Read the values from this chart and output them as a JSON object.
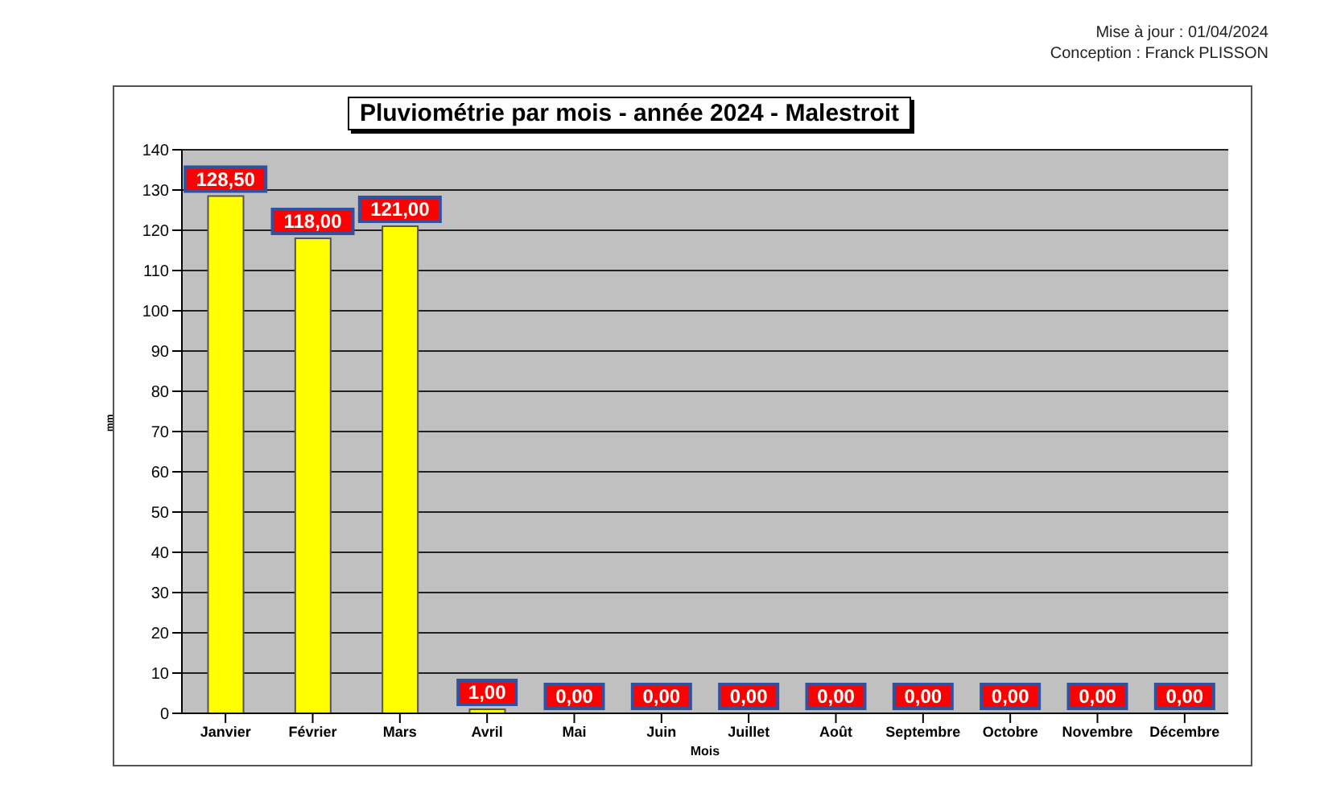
{
  "chart_data": {
    "type": "bar",
    "title": "Pluviométrie par mois - année 2024 - Malestroit",
    "xlabel": "Mois",
    "ylabel": "mm",
    "annotations": [
      "Mise à jour : 01/04/2024",
      "Conception : Franck PLISSON"
    ],
    "categories": [
      "Janvier",
      "Février",
      "Mars",
      "Avril",
      "Mai",
      "Juin",
      "Juillet",
      "Août",
      "Septembre",
      "Octobre",
      "Novembre",
      "Décembre"
    ],
    "values": [
      128.5,
      118,
      121,
      1,
      0,
      0,
      0,
      0,
      0,
      0,
      0,
      0
    ],
    "value_labels": [
      "128,50",
      "118,00",
      "121,00",
      "1,00",
      "0,00",
      "0,00",
      "0,00",
      "0,00",
      "0,00",
      "0,00",
      "0,00",
      "0,00"
    ],
    "color": "#ffff00",
    "ylim": [
      0,
      140
    ],
    "yticks": [
      0,
      10,
      20,
      30,
      40,
      50,
      60,
      70,
      80,
      90,
      100,
      110,
      120,
      130,
      140
    ],
    "grid": "y",
    "legend": false
  }
}
